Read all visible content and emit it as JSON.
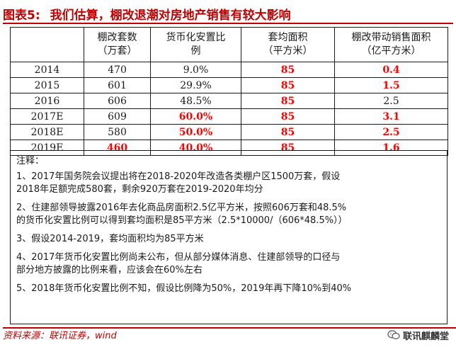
{
  "title": {
    "prefix": "图表5:",
    "text": "我们估算，棚改退潮对房地产销售有较大影响"
  },
  "table": {
    "headers": [
      [
        "",
        ""
      ],
      [
        "棚改套数",
        "（万套）"
      ],
      [
        "货币化安置比",
        "例"
      ],
      [
        "套均面积",
        "（平方米）"
      ],
      [
        "棚改带动销售面积",
        "（亿平方米）"
      ]
    ],
    "rows": [
      {
        "year": "2014",
        "sets": "470",
        "ratio": "9.0%",
        "area": "85",
        "sales": "0.4"
      },
      {
        "year": "2015",
        "sets": "601",
        "ratio": "29.9%",
        "area": "85",
        "sales": "1.5"
      },
      {
        "year": "2016",
        "sets": "606",
        "ratio": "48.5%",
        "area": "85",
        "sales": "2.5"
      },
      {
        "year": "2017E",
        "sets": "609",
        "ratio": "60.0%",
        "area": "85",
        "sales": "3.1"
      },
      {
        "year": "2018E",
        "sets": "580",
        "ratio": "50.0%",
        "area": "85",
        "sales": "2.5"
      },
      {
        "year": "2019E",
        "sets": "460",
        "ratio": "40.0%",
        "area": "85",
        "sales": "1.6"
      }
    ]
  },
  "notes": {
    "header": "注释：",
    "items": [
      [
        "1、2017年国务院会议提出将在2018-2020年改造各类棚户区1500万套，假设",
        "2018年足额完成580套，剩余920万套在2019-2020年均分"
      ],
      [
        "2、住建部领导披露2016年去化商品房面积2.5亿平方米，按照606万套和48.5%",
        "的货币化安置比例可以得到套均面积是85平方米（2.5*10000/（606*48.5%））"
      ],
      [
        "3、假设2014-2019，套均面积均为85平方米"
      ],
      [
        "4、2017年货币化安置比例尚未公布，但从部分媒体消息、住建部领导的口径与",
        "部分地方披露的比例来看，应该会在60%左右"
      ],
      [
        "5、2018年货币化安置比例不知，假设比例降为50%，2019年再下降10%到40%"
      ]
    ]
  },
  "source": "资料来源：联讯证券，wind",
  "watermark": "联讯麒麟堂"
}
